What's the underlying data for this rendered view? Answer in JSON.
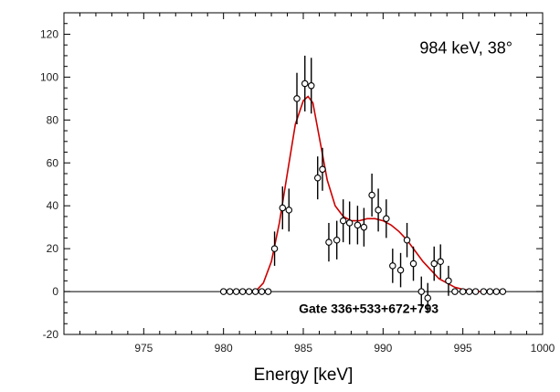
{
  "chart_data": {
    "type": "scatter",
    "title": "",
    "xlabel": "Energy  [keV]",
    "ylabel": "",
    "xlim": [
      970,
      1000
    ],
    "ylim": [
      -20,
      130
    ],
    "xticks": [
      975,
      980,
      985,
      990,
      995,
      1000
    ],
    "xtick_labels": [
      "975",
      "980",
      "985",
      "990",
      "995",
      "1000"
    ],
    "yticks": [
      -20,
      0,
      20,
      40,
      60,
      80,
      100,
      120
    ],
    "ytick_labels": [
      "-20",
      "0",
      "20",
      "40",
      "60",
      "80",
      "100",
      "120"
    ],
    "grid": false,
    "legend": "none",
    "annotations": [
      {
        "text": "984  keV, 38°",
        "x": 995.2,
        "y": 111
      },
      {
        "text": "Gate 336+533+672+793",
        "x": 989.1,
        "y": -10
      }
    ],
    "series": [
      {
        "kind": "data-points",
        "x": [
          980.0,
          980.4,
          980.8,
          981.2,
          981.6,
          982.0,
          982.4,
          982.8,
          983.2,
          983.7,
          984.1,
          984.6,
          985.1,
          985.5,
          985.9,
          986.2,
          986.6,
          987.1,
          987.5,
          987.9,
          988.4,
          988.8,
          989.3,
          989.7,
          990.2,
          990.6,
          991.1,
          991.5,
          991.9,
          992.4,
          992.8,
          993.2,
          993.6,
          994.1,
          994.5,
          995.0,
          995.4,
          995.8,
          996.3,
          996.7,
          997.1,
          997.5
        ],
        "y": [
          0,
          0,
          0,
          0,
          0,
          0,
          0,
          0,
          20,
          39,
          38,
          90,
          97,
          96,
          53,
          57,
          23,
          24,
          33,
          32,
          31,
          30,
          45,
          38,
          34,
          12,
          10,
          24,
          13,
          0,
          -3,
          13,
          14,
          5,
          0,
          0,
          0,
          0,
          0,
          0,
          0,
          0
        ],
        "err": [
          0,
          0,
          0,
          0,
          0,
          0,
          0,
          0,
          8,
          10,
          10,
          12,
          13,
          13,
          10,
          10,
          9,
          9,
          10,
          10,
          9,
          9,
          10,
          10,
          9,
          8,
          8,
          8,
          8,
          7,
          7,
          8,
          8,
          7,
          0,
          0,
          0,
          0,
          0,
          0,
          0,
          0
        ],
        "color": "#000000"
      },
      {
        "kind": "fit-curve",
        "x": [
          982.0,
          982.5,
          983.0,
          983.5,
          984.0,
          984.5,
          985.0,
          985.3,
          985.6,
          986.0,
          986.5,
          987.0,
          987.5,
          988.0,
          988.5,
          989.0,
          989.5,
          990.0,
          990.5,
          991.0,
          991.5,
          992.0,
          992.5,
          993.0,
          993.5,
          994.0,
          994.5,
          995.0,
          995.5,
          996.0,
          996.5
        ],
        "y": [
          0,
          4,
          14,
          32,
          55,
          78,
          89,
          91,
          88,
          72,
          52,
          40,
          35,
          33,
          33,
          34,
          34,
          33,
          31,
          28,
          24,
          19,
          14,
          10,
          6,
          4,
          2,
          1,
          0.5,
          0,
          0
        ],
        "color": "#cc0000"
      }
    ]
  }
}
